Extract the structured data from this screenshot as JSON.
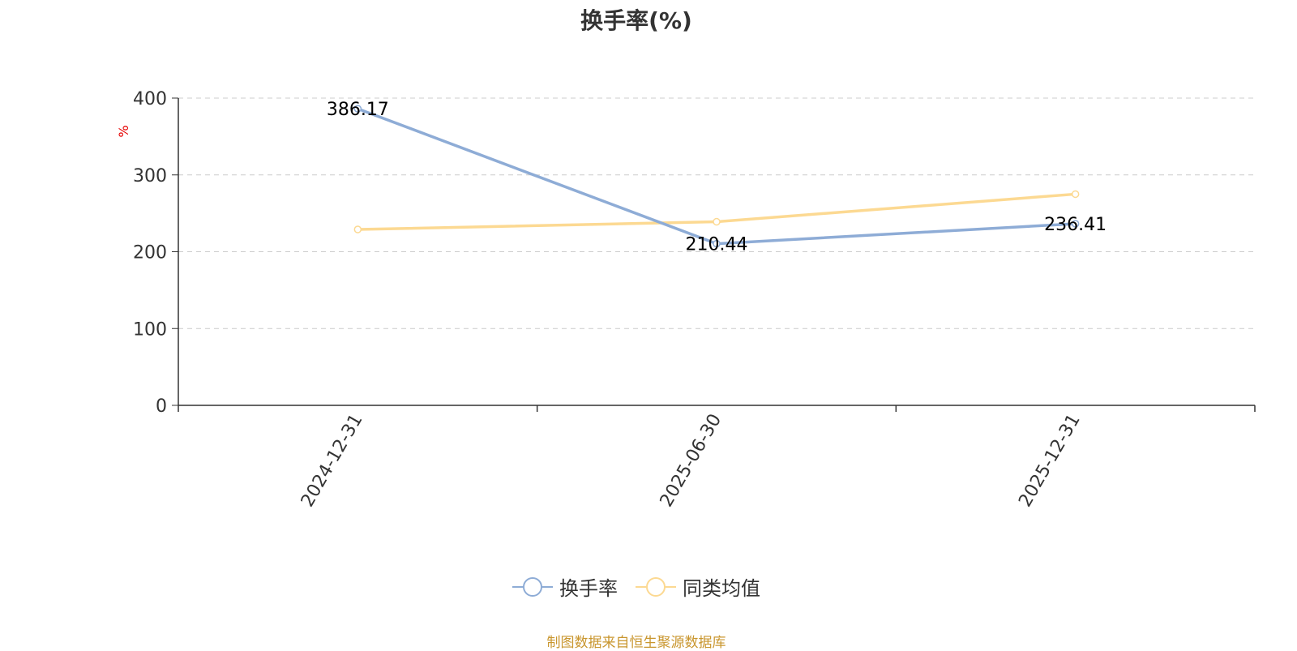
{
  "chart_data": {
    "type": "line",
    "title": "换手率(%)",
    "ylabel": "%",
    "categories": [
      "2024-12-31",
      "2025-06-30",
      "2025-12-31"
    ],
    "ylim": [
      0,
      400
    ],
    "yticks": [
      0,
      100,
      200,
      300,
      400
    ],
    "grid": true,
    "legend_position": "bottom",
    "series": [
      {
        "name": "换手率",
        "values": [
          386.17,
          210.44,
          236.41
        ],
        "data_labels": [
          "386.17",
          "210.44",
          "236.41"
        ],
        "color": "#8eacd6"
      },
      {
        "name": "同类均值",
        "values": [
          229,
          239,
          275
        ],
        "color": "#fcd992"
      }
    ]
  },
  "source_note": "制图数据来自恒生聚源数据库",
  "colors": {
    "axis": "#333333",
    "grid": "#cccccc",
    "ylabel": "#e60000",
    "source": "#c9962e"
  }
}
